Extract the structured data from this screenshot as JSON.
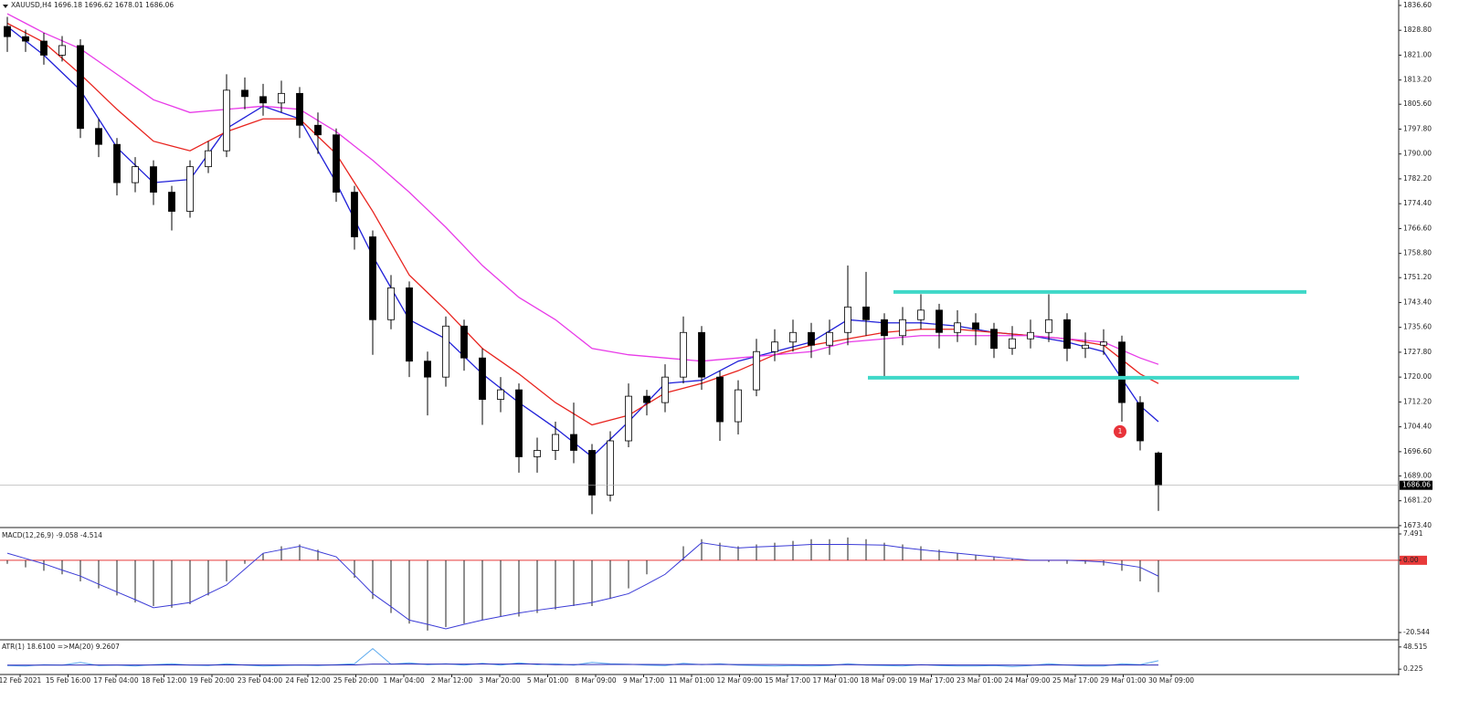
{
  "chart_data": [
    {
      "type": "candlestick",
      "title": "XAUUSD,H4  1696.18 1696.62 1678.01 1686.06",
      "open": [
        1830,
        1826.8,
        1825.4,
        1821,
        1824,
        1798,
        1793,
        1781,
        1786,
        1778,
        1772,
        1786,
        1791,
        1810,
        1808,
        1806,
        1809,
        1799,
        1796,
        1778,
        1764,
        1738,
        1748,
        1725,
        1720,
        1736,
        1726,
        1713,
        1716,
        1695,
        1697,
        1702,
        1697,
        1683,
        1700,
        1714,
        1712,
        1720,
        1734,
        1720,
        1706,
        1716,
        1728,
        1731,
        1734,
        1730,
        1734,
        1742,
        1738,
        1733,
        1738,
        1741,
        1734,
        1737,
        1735,
        1729,
        1732,
        1734,
        1738,
        1729,
        1730,
        1731,
        1712,
        1696.18
      ],
      "high": [
        1833,
        1829,
        1828,
        1827,
        1826,
        1801,
        1795,
        1789,
        1788,
        1780,
        1788,
        1794,
        1815,
        1814,
        1812,
        1813,
        1811,
        1803,
        1798,
        1780,
        1766,
        1752,
        1750,
        1728,
        1739,
        1738,
        1729,
        1720,
        1718,
        1701,
        1706,
        1712,
        1699,
        1703,
        1718,
        1716,
        1724,
        1739,
        1736,
        1722,
        1719,
        1732,
        1735,
        1738,
        1737,
        1738,
        1755,
        1753,
        1740,
        1742,
        1746,
        1743,
        1741,
        1740,
        1737,
        1736,
        1738,
        1746,
        1740,
        1734,
        1735,
        1733,
        1714,
        1696.62
      ],
      "low": [
        1822,
        1822,
        1818,
        1819,
        1795,
        1789,
        1777,
        1778,
        1774,
        1766,
        1770,
        1784,
        1789,
        1804,
        1802,
        1803,
        1795,
        1790,
        1775,
        1760,
        1727,
        1735,
        1720,
        1708,
        1717,
        1722,
        1705,
        1709,
        1690,
        1690,
        1694,
        1693,
        1677,
        1681,
        1698,
        1708,
        1709,
        1718,
        1716,
        1700,
        1702,
        1714,
        1725,
        1728,
        1726,
        1727,
        1730,
        1733,
        1720,
        1730,
        1735,
        1729,
        1731,
        1730,
        1726,
        1727,
        1729,
        1731,
        1725,
        1726,
        1727,
        1706,
        1697,
        1678.01
      ],
      "close": [
        1826.8,
        1825.4,
        1821,
        1824,
        1798,
        1793,
        1781,
        1786,
        1778,
        1772,
        1786,
        1791,
        1810,
        1808,
        1806,
        1809,
        1799,
        1796,
        1778,
        1764,
        1738,
        1748,
        1725,
        1720,
        1736,
        1726,
        1713,
        1716,
        1695,
        1697,
        1702,
        1697,
        1683,
        1700,
        1714,
        1712,
        1720,
        1734,
        1720,
        1706,
        1716,
        1728,
        1731,
        1734,
        1730,
        1734,
        1742,
        1738,
        1733,
        1738,
        1741,
        1734,
        1737,
        1735,
        1729,
        1732,
        1734,
        1738,
        1729,
        1730,
        1731,
        1712,
        1700,
        1686.06
      ],
      "ma_lines": [
        {
          "color": "#1f1fd8",
          "values": [
            1830,
            1825.5,
            1821,
            1815.5,
            1810,
            1801,
            1792,
            1786.5,
            1781,
            1781.5,
            1782,
            1790,
            1798,
            1801.5,
            1805,
            1803,
            1801,
            1791,
            1781,
            1769.5,
            1758,
            1748,
            1738,
            1735,
            1732,
            1726.5,
            1721,
            1716.5,
            1712,
            1708,
            1704,
            1699.5,
            1695,
            1700.5,
            1706,
            1712,
            1718,
            1718.5,
            1719,
            1722,
            1725,
            1726.5,
            1728,
            1729.5,
            1731,
            1734.5,
            1738,
            1737.5,
            1737,
            1737,
            1737,
            1736.5,
            1736,
            1735,
            1734,
            1733.5,
            1733,
            1732,
            1731,
            1729.5,
            1728,
            1719.5,
            1711,
            1706
          ]
        },
        {
          "color": "#e8231e",
          "values": [
            1831,
            1828,
            1825,
            1820,
            1815,
            1809.5,
            1804,
            1799,
            1794,
            1792.5,
            1791,
            1794,
            1797,
            1799,
            1801,
            1801,
            1801,
            1795.5,
            1790,
            1781,
            1772,
            1762,
            1752,
            1746.5,
            1741,
            1735,
            1729,
            1725,
            1721,
            1716.5,
            1712,
            1708.5,
            1705,
            1706.5,
            1708,
            1711.5,
            1715,
            1716.5,
            1718,
            1720,
            1722,
            1724.5,
            1727,
            1728.5,
            1730,
            1731,
            1732,
            1733,
            1734,
            1734.5,
            1735,
            1735,
            1735,
            1734.5,
            1734,
            1733.5,
            1733,
            1732.5,
            1732,
            1731,
            1730,
            1725.5,
            1721,
            1718
          ]
        },
        {
          "color": "#e83ae8",
          "values": [
            1834,
            1831,
            1828,
            1825.5,
            1823,
            1819,
            1815,
            1811,
            1807,
            1805,
            1803,
            1803.5,
            1804,
            1804.5,
            1805,
            1804.5,
            1804,
            1800.5,
            1797,
            1792.5,
            1788,
            1783,
            1778,
            1772.5,
            1767,
            1761,
            1755,
            1750,
            1745,
            1741.5,
            1738,
            1733.5,
            1729,
            1728,
            1727,
            1726.5,
            1726,
            1725.5,
            1725,
            1725.5,
            1726,
            1726.5,
            1727,
            1727.5,
            1728,
            1729.5,
            1731,
            1731.5,
            1732,
            1732.5,
            1733,
            1733,
            1733,
            1733,
            1733,
            1733,
            1733,
            1732.5,
            1732,
            1731.5,
            1731,
            1728.5,
            1726,
            1724
          ]
        }
      ],
      "levels": {
        "color": "#3fd8c8",
        "values": [
          1746.7,
          1719.8
        ]
      },
      "annotation": {
        "label": "1",
        "value": 1702.9,
        "color": "#e8333a"
      },
      "ylim": [
        1672.8,
        1838.3
      ],
      "yticks": [
        {
          "value": 1836.6,
          "label": "1836.60"
        },
        {
          "value": 1828.8,
          "label": "1828.80"
        },
        {
          "value": 1821,
          "label": "1821.00"
        },
        {
          "value": 1813.2,
          "label": "1813.20"
        },
        {
          "value": 1805.6,
          "label": "1805.60"
        },
        {
          "value": 1797.8,
          "label": "1797.80"
        },
        {
          "value": 1790,
          "label": "1790.00"
        },
        {
          "value": 1782.2,
          "label": "1782.20"
        },
        {
          "value": 1774.4,
          "label": "1774.40"
        },
        {
          "value": 1766.6,
          "label": "1766.60"
        },
        {
          "value": 1758.8,
          "label": "1758.80"
        },
        {
          "value": 1751.2,
          "label": "1751.20"
        },
        {
          "value": 1743.4,
          "label": "1743.40"
        },
        {
          "value": 1735.6,
          "label": "1735.60"
        },
        {
          "value": 1727.8,
          "label": "1727.80"
        },
        {
          "value": 1720,
          "label": "1720.00"
        },
        {
          "value": 1712.2,
          "label": "1712.20"
        },
        {
          "value": 1704.4,
          "label": "1704.40"
        },
        {
          "value": 1696.6,
          "label": "1696.60"
        },
        {
          "value": 1689,
          "label": "1689.00"
        },
        {
          "value": 1681.2,
          "label": "1681.20"
        },
        {
          "value": 1673.4,
          "label": "1673.40"
        }
      ]
    },
    {
      "type": "macd",
      "title": "MACD(12,26,9) -9.058 -4.514",
      "histogram": {
        "color": "#222222",
        "values": [
          -1,
          -2,
          -3,
          -4,
          -6,
          -8,
          -10,
          -12,
          -13,
          -13.5,
          -12.5,
          -10,
          -6,
          -1,
          2,
          4,
          4.5,
          3,
          0,
          -5,
          -11,
          -15,
          -18,
          -20,
          -19,
          -18,
          -17,
          -16,
          -16,
          -15,
          -14,
          -13,
          -13,
          -11,
          -8,
          -4,
          0,
          4,
          6,
          5,
          4,
          4.5,
          5,
          5.5,
          6,
          6,
          6.5,
          6,
          5,
          4.5,
          4,
          3,
          2,
          1.5,
          1,
          0.5,
          0,
          -0.5,
          -1,
          -1,
          -1.5,
          -3,
          -6,
          -9.058
        ]
      },
      "signal": {
        "color": "#3b3bd6",
        "values": [
          2,
          0.5,
          -1,
          -2.8,
          -4.5,
          -6.8,
          -9,
          -11.2,
          -13.5,
          -12.8,
          -12,
          -9.5,
          -7,
          -2.5,
          2,
          3,
          4,
          2.5,
          1,
          -4.2,
          -9.5,
          -13.2,
          -17,
          -18.2,
          -19.5,
          -18.2,
          -17,
          -16,
          -15,
          -14.2,
          -13.5,
          -12.8,
          -12,
          -10.8,
          -9.5,
          -6.8,
          -4,
          0.5,
          5,
          4.2,
          3.5,
          3.8,
          4,
          4.2,
          4.5,
          4.5,
          4.5,
          4.4,
          4.3,
          3.6,
          3,
          2.5,
          2,
          1.5,
          1,
          0.5,
          0,
          0,
          0,
          -0.2,
          -0.5,
          -1.2,
          -2,
          -4.514
        ]
      },
      "zero_line_color": "#e83a3a",
      "ylim": [
        -22.36,
        8.79
      ],
      "yticks": [
        {
          "value": -20.544,
          "label": "-20.544"
        },
        {
          "value": 0,
          "label": "0.00"
        },
        {
          "value": 7.491,
          "label": "7.491"
        }
      ]
    },
    {
      "type": "atr",
      "title": "ATR(1) 18.6100 =>MA(20) 9.2607",
      "atr": {
        "color": "#5aa9ee",
        "values": [
          8,
          7,
          10,
          9,
          15,
          8,
          9,
          7,
          10,
          12,
          9,
          8,
          12,
          9,
          7,
          8,
          9,
          8,
          10,
          12,
          45,
          11,
          14,
          10,
          12,
          9,
          13,
          9,
          14,
          10,
          12,
          9,
          15,
          12,
          11,
          9,
          8,
          13,
          10,
          12,
          9,
          8,
          7,
          8,
          7,
          8,
          12,
          9,
          8,
          7,
          10,
          8,
          7,
          7,
          8,
          6,
          8,
          12,
          9,
          7,
          7,
          12,
          10,
          18.61
        ]
      },
      "ma": {
        "color": "#2a2ab8",
        "values": [
          9,
          9,
          9,
          9,
          9.3,
          9.2,
          9.2,
          9.1,
          9.2,
          9.4,
          9.3,
          9.3,
          9.5,
          9.4,
          9.3,
          9.3,
          9.3,
          9.2,
          9.3,
          9.5,
          11.2,
          11.1,
          11.3,
          11.2,
          11.3,
          11.3,
          11.4,
          11.3,
          11.5,
          11.5,
          10,
          10.1,
          10.3,
          10.4,
          10.4,
          10.4,
          10.3,
          10.5,
          10.4,
          10.4,
          10.3,
          10.2,
          10.1,
          9.9,
          9.8,
          9.8,
          9.9,
          9.8,
          9.7,
          9.6,
          9.5,
          9.4,
          9.3,
          9.2,
          9.1,
          9,
          9,
          9.1,
          9.1,
          9,
          9,
          9.1,
          9.1,
          9.2607
        ]
      },
      "ylim": [
        -9.4,
        60.1
      ],
      "yticks": [
        {
          "value": 0.225,
          "label": "0.225"
        },
        {
          "value": 48.515,
          "label": "48.515"
        }
      ],
      "x_labels": [
        "12 Feb 2021",
        "15 Feb 16:00",
        "17 Feb 04:00",
        "18 Feb 12:00",
        "19 Feb 20:00",
        "23 Feb 04:00",
        "24 Feb 12:00",
        "25 Feb 20:00",
        "1 Mar 04:00",
        "2 Mar 12:00",
        "3 Mar 20:00",
        "5 Mar 01:00",
        "8 Mar 09:00",
        "9 Mar 17:00",
        "11 Mar 01:00",
        "12 Mar 09:00",
        "15 Mar 17:00",
        "17 Mar 01:00",
        "18 Mar 09:00",
        "19 Mar 17:00",
        "23 Mar 01:00",
        "24 Mar 09:00",
        "25 Mar 17:00",
        "29 Mar 01:00",
        "30 Mar 09:00"
      ]
    }
  ]
}
